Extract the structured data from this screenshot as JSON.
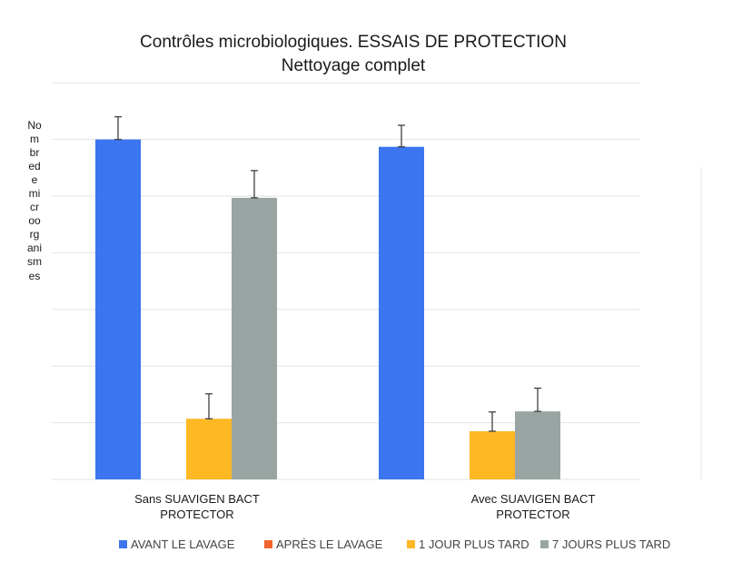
{
  "chart_data": {
    "type": "bar",
    "title": "Contrôles microbiologiques. ESSAIS DE PROTECTION",
    "subtitle": "Nettoyage complet",
    "ylabel": "Nombredemicroorganismes",
    "xlabel": "",
    "ylim": [
      0,
      7
    ],
    "grid": true,
    "legend_position": "bottom",
    "categories": [
      "Sans SUAVIGEN BACT PROTECTOR",
      "Avec SUAVIGEN BACT PROTECTOR"
    ],
    "series": [
      {
        "name": "AVANT LE LAVAGE",
        "color": "#3b75f0",
        "values": [
          6.0,
          5.87
        ],
        "errors": [
          0.4,
          0.38
        ]
      },
      {
        "name": "APRÈS LE LAVAGE",
        "color": "#f4632b",
        "values": [
          0,
          0
        ],
        "errors": [
          0,
          0
        ]
      },
      {
        "name": "1 JOUR PLUS TARD",
        "color": "#fdb824",
        "values": [
          1.07,
          0.85
        ],
        "errors": [
          0.44,
          0.34
        ]
      },
      {
        "name": "7 JOURS PLUS TARD",
        "color": "#9aa5a3",
        "values": [
          4.97,
          1.2
        ],
        "errors": [
          0.48,
          0.41
        ]
      }
    ]
  }
}
